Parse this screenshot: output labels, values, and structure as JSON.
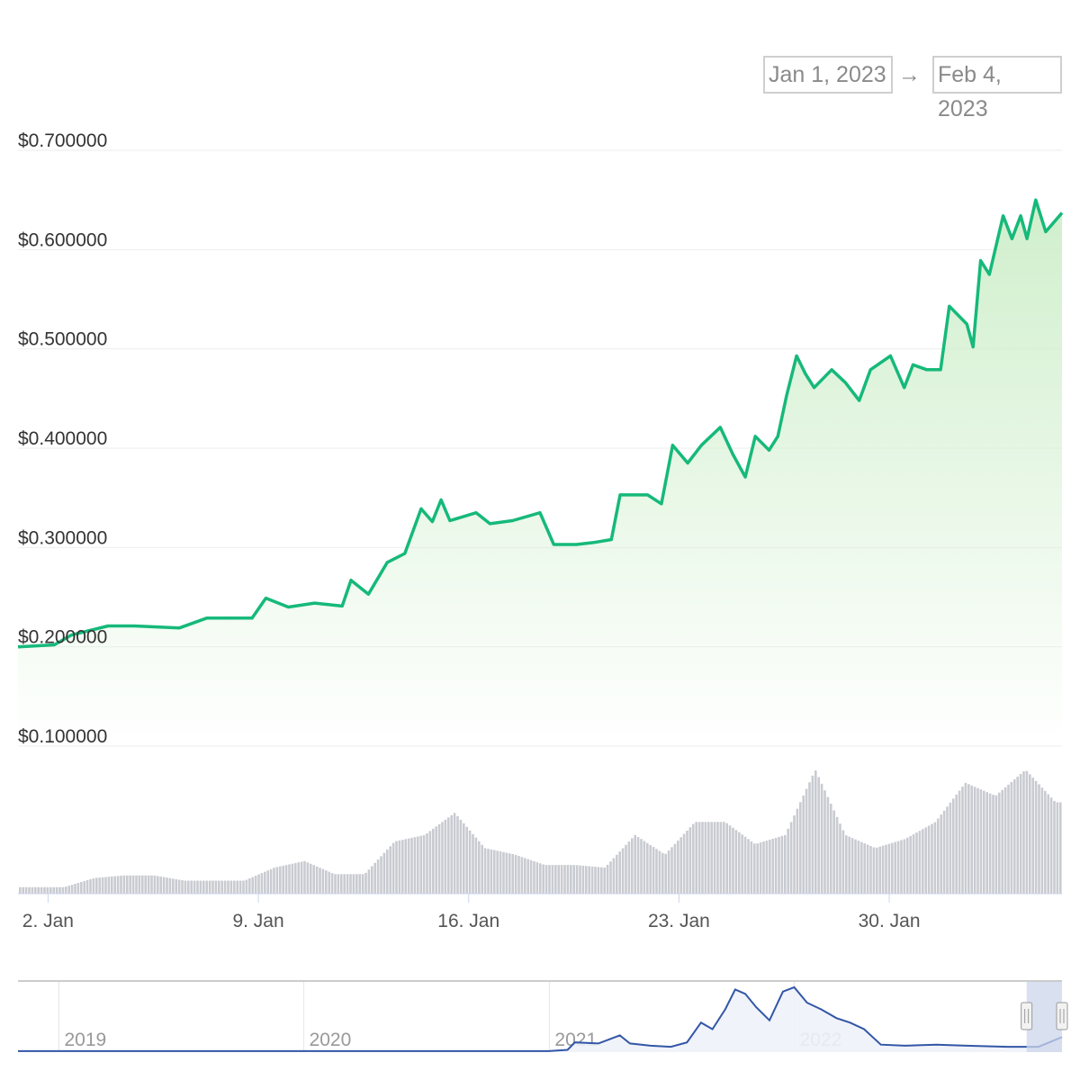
{
  "range_selector": {
    "from": "Jan 1, 2023",
    "arrow": "→",
    "to": "Feb 4, 2023"
  },
  "chart_data": {
    "type": "line",
    "title": "",
    "xlabel": "",
    "ylabel": "",
    "ylim": [
      0.1,
      0.7
    ],
    "xlim": [
      "2023-01-01T00:00",
      "2023-02-04T18:00"
    ],
    "grid": true,
    "colors": {
      "price_line": "#16b97a",
      "price_fill": "#cdeec9",
      "volume": "#c9cbd1",
      "navigator_line": "#3356a6",
      "navigator_fill": "#eef2fa",
      "navigator_mask": "#ccd6eb"
    },
    "y_ticks": [
      {
        "value": 0.7,
        "label": "$0.700000"
      },
      {
        "value": 0.6,
        "label": "$0.600000"
      },
      {
        "value": 0.5,
        "label": "$0.500000"
      },
      {
        "value": 0.4,
        "label": "$0.400000"
      },
      {
        "value": 0.3,
        "label": "$0.300000"
      },
      {
        "value": 0.2,
        "label": "$0.200000"
      },
      {
        "value": 0.1,
        "label": "$0.100000"
      }
    ],
    "x_ticks": [
      {
        "date": "2023-01-02T00:00",
        "label": "2. Jan"
      },
      {
        "date": "2023-01-09T00:00",
        "label": "9. Jan"
      },
      {
        "date": "2023-01-16T00:00",
        "label": "16. Jan"
      },
      {
        "date": "2023-01-23T00:00",
        "label": "23. Jan"
      },
      {
        "date": "2023-01-30T00:00",
        "label": "30. Jan"
      }
    ],
    "price": [
      [
        "2023-01-01T00:00",
        0.2
      ],
      [
        "2023-01-02T05:00",
        0.202
      ],
      [
        "2023-01-02T19:00",
        0.212
      ],
      [
        "2023-01-04T00:00",
        0.221
      ],
      [
        "2023-01-04T21:00",
        0.221
      ],
      [
        "2023-01-06T09:00",
        0.219
      ],
      [
        "2023-01-07T07:00",
        0.229
      ],
      [
        "2023-01-08T19:00",
        0.229
      ],
      [
        "2023-01-09T06:00",
        0.249
      ],
      [
        "2023-01-10T00:00",
        0.24
      ],
      [
        "2023-01-10T21:00",
        0.244
      ],
      [
        "2023-01-11T19:00",
        0.241
      ],
      [
        "2023-01-12T02:00",
        0.267
      ],
      [
        "2023-01-12T16:00",
        0.253
      ],
      [
        "2023-01-13T07:00",
        0.285
      ],
      [
        "2023-01-13T21:00",
        0.294
      ],
      [
        "2023-01-14T10:00",
        0.339
      ],
      [
        "2023-01-14T19:00",
        0.326
      ],
      [
        "2023-01-15T02:00",
        0.348
      ],
      [
        "2023-01-15T09:00",
        0.327
      ],
      [
        "2023-01-16T06:00",
        0.335
      ],
      [
        "2023-01-16T17:00",
        0.324
      ],
      [
        "2023-01-17T11:00",
        0.327
      ],
      [
        "2023-01-18T09:00",
        0.335
      ],
      [
        "2023-01-18T20:00",
        0.303
      ],
      [
        "2023-01-19T14:00",
        0.303
      ],
      [
        "2023-01-20T04:00",
        0.305
      ],
      [
        "2023-01-20T18:00",
        0.308
      ],
      [
        "2023-01-21T01:00",
        0.353
      ],
      [
        "2023-01-21T23:00",
        0.353
      ],
      [
        "2023-01-22T10:00",
        0.344
      ],
      [
        "2023-01-22T19:00",
        0.403
      ],
      [
        "2023-01-23T07:00",
        0.385
      ],
      [
        "2023-01-23T18:00",
        0.403
      ],
      [
        "2023-01-24T09:00",
        0.421
      ],
      [
        "2023-01-24T19:00",
        0.394
      ],
      [
        "2023-01-25T05:00",
        0.371
      ],
      [
        "2023-01-25T13:00",
        0.412
      ],
      [
        "2023-01-26T00:00",
        0.398
      ],
      [
        "2023-01-26T07:00",
        0.412
      ],
      [
        "2023-01-26T14:00",
        0.453
      ],
      [
        "2023-01-26T22:00",
        0.493
      ],
      [
        "2023-01-27T05:00",
        0.475
      ],
      [
        "2023-01-27T12:00",
        0.461
      ],
      [
        "2023-01-28T02:00",
        0.479
      ],
      [
        "2023-01-28T13:00",
        0.466
      ],
      [
        "2023-01-29T00:00",
        0.448
      ],
      [
        "2023-01-29T09:00",
        0.479
      ],
      [
        "2023-01-30T01:00",
        0.493
      ],
      [
        "2023-01-30T12:00",
        0.461
      ],
      [
        "2023-01-30T19:00",
        0.484
      ],
      [
        "2023-01-31T06:00",
        0.479
      ],
      [
        "2023-01-31T17:00",
        0.479
      ],
      [
        "2023-02-01T00:00",
        0.543
      ],
      [
        "2023-02-01T14:00",
        0.525
      ],
      [
        "2023-02-01T19:00",
        0.502
      ],
      [
        "2023-02-02T01:00",
        0.589
      ],
      [
        "2023-02-02T08:00",
        0.575
      ],
      [
        "2023-02-02T19:00",
        0.634
      ],
      [
        "2023-02-03T02:00",
        0.611
      ],
      [
        "2023-02-03T09:00",
        0.634
      ],
      [
        "2023-02-03T14:00",
        0.611
      ],
      [
        "2023-02-03T21:00",
        0.65
      ],
      [
        "2023-02-04T05:00",
        0.618
      ],
      [
        "2023-02-04T18:00",
        0.637
      ]
    ],
    "volume_relative": [
      [
        "2023-01-01",
        5
      ],
      [
        "2023-01-02",
        5
      ],
      [
        "2023-01-03",
        12
      ],
      [
        "2023-01-04",
        14
      ],
      [
        "2023-01-05",
        14
      ],
      [
        "2023-01-06",
        10
      ],
      [
        "2023-01-07",
        10
      ],
      [
        "2023-01-08",
        10
      ],
      [
        "2023-01-09",
        20
      ],
      [
        "2023-01-10",
        25
      ],
      [
        "2023-01-11",
        15
      ],
      [
        "2023-01-12",
        15
      ],
      [
        "2023-01-13",
        40
      ],
      [
        "2023-01-14",
        45
      ],
      [
        "2023-01-15",
        62
      ],
      [
        "2023-01-16",
        35
      ],
      [
        "2023-01-17",
        30
      ],
      [
        "2023-01-18",
        22
      ],
      [
        "2023-01-19",
        22
      ],
      [
        "2023-01-20",
        20
      ],
      [
        "2023-01-21",
        45
      ],
      [
        "2023-01-22",
        30
      ],
      [
        "2023-01-23",
        55
      ],
      [
        "2023-01-24",
        55
      ],
      [
        "2023-01-25",
        38
      ],
      [
        "2023-01-26",
        45
      ],
      [
        "2023-01-27",
        95
      ],
      [
        "2023-01-28",
        45
      ],
      [
        "2023-01-29",
        35
      ],
      [
        "2023-01-30",
        42
      ],
      [
        "2023-01-31",
        55
      ],
      [
        "2023-02-01",
        85
      ],
      [
        "2023-02-02",
        75
      ],
      [
        "2023-02-03",
        95
      ],
      [
        "2023-02-04",
        70
      ]
    ],
    "navigator": {
      "x_ticks": [
        {
          "date": "2019-01-01",
          "label": "2019"
        },
        {
          "date": "2020-01-01",
          "label": "2020"
        },
        {
          "date": "2021-01-01",
          "label": "2021"
        },
        {
          "date": "2022-01-01",
          "label": "2022"
        }
      ],
      "selected_range": [
        "2023-01-01",
        "2023-02-04"
      ],
      "series": [
        [
          "2018-11-01",
          0.003
        ],
        [
          "2019-06-01",
          0.003
        ],
        [
          "2020-06-01",
          0.003
        ],
        [
          "2020-12-31",
          0.005
        ],
        [
          "2021-01-28",
          0.06
        ],
        [
          "2021-02-08",
          0.4
        ],
        [
          "2021-03-15",
          0.35
        ],
        [
          "2021-04-16",
          0.72
        ],
        [
          "2021-05-01",
          0.35
        ],
        [
          "2021-06-01",
          0.25
        ],
        [
          "2021-07-01",
          0.2
        ],
        [
          "2021-07-25",
          0.4
        ],
        [
          "2021-08-15",
          1.3
        ],
        [
          "2021-09-01",
          1.0
        ],
        [
          "2021-09-20",
          1.9
        ],
        [
          "2021-10-05",
          2.8
        ],
        [
          "2021-10-20",
          2.6
        ],
        [
          "2021-11-05",
          2.0
        ],
        [
          "2021-11-25",
          1.4
        ],
        [
          "2021-12-15",
          2.7
        ],
        [
          "2022-01-01",
          2.9
        ],
        [
          "2022-01-20",
          2.2
        ],
        [
          "2022-02-10",
          1.9
        ],
        [
          "2022-03-05",
          1.5
        ],
        [
          "2022-03-25",
          1.3
        ],
        [
          "2022-04-15",
          1.0
        ],
        [
          "2022-05-10",
          0.3
        ],
        [
          "2022-06-15",
          0.25
        ],
        [
          "2022-08-01",
          0.3
        ],
        [
          "2022-09-15",
          0.25
        ],
        [
          "2022-11-15",
          0.2
        ],
        [
          "2022-12-31",
          0.2
        ],
        [
          "2023-02-04",
          0.64
        ]
      ]
    }
  }
}
